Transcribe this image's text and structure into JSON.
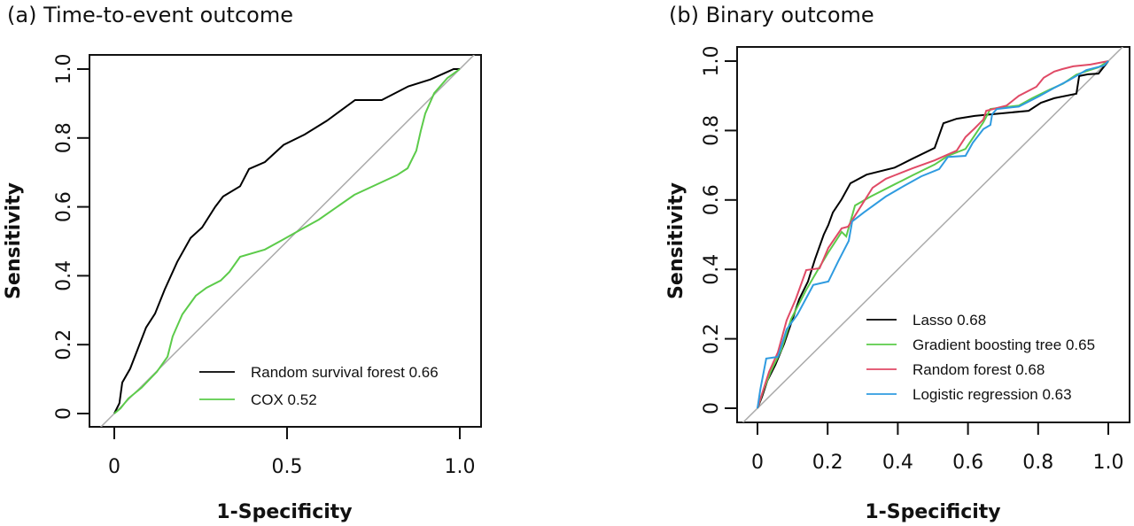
{
  "chart_data": [
    {
      "type": "line",
      "title": "(a) Time-to-event outcome",
      "xlabel": "1-Specificity",
      "ylabel": "Sensitivity",
      "xlim": [
        0,
        1
      ],
      "ylim": [
        0,
        1
      ],
      "xticks": [
        0,
        0.5,
        1.0
      ],
      "xtick_labels": [
        "0",
        "0.5",
        "1.0"
      ],
      "yticks": [
        0,
        0.2,
        0.4,
        0.6,
        0.8,
        1.0
      ],
      "ytick_labels": [
        "0",
        "0.2",
        "0.4",
        "0.6",
        "0.8",
        "1.0"
      ],
      "grid": false,
      "legend_position": "bottom-right",
      "reference_line": {
        "name": "chance",
        "color": "#aaaaaa",
        "points": [
          [
            -0.07,
            -0.07
          ],
          [
            1.06,
            1.06
          ]
        ]
      },
      "series": [
        {
          "name": "Random survival forest 0.66",
          "auc": 0.66,
          "color": "#000000",
          "x": [
            0,
            0.015,
            0.023,
            0.046,
            0.069,
            0.092,
            0.118,
            0.146,
            0.182,
            0.221,
            0.254,
            0.292,
            0.315,
            0.364,
            0.39,
            0.436,
            0.49,
            0.551,
            0.615,
            0.697,
            0.774,
            0.851,
            0.915,
            0.982,
            1
          ],
          "y": [
            0,
            0.03,
            0.09,
            0.13,
            0.19,
            0.25,
            0.29,
            0.36,
            0.44,
            0.51,
            0.54,
            0.6,
            0.63,
            0.66,
            0.71,
            0.73,
            0.78,
            0.81,
            0.85,
            0.91,
            0.91,
            0.95,
            0.97,
            1.0,
            1.0
          ]
        },
        {
          "name": "COX 0.52",
          "auc": 0.52,
          "color": "#5ccb4a",
          "x": [
            0,
            0.018,
            0.041,
            0.079,
            0.123,
            0.154,
            0.169,
            0.197,
            0.236,
            0.267,
            0.308,
            0.333,
            0.364,
            0.436,
            0.487,
            0.536,
            0.592,
            0.695,
            0.818,
            0.849,
            0.874,
            0.887,
            0.9,
            0.926,
            0.964,
            1
          ],
          "y": [
            0,
            0.015,
            0.044,
            0.075,
            0.121,
            0.165,
            0.224,
            0.288,
            0.342,
            0.365,
            0.386,
            0.411,
            0.455,
            0.476,
            0.504,
            0.532,
            0.563,
            0.635,
            0.692,
            0.712,
            0.763,
            0.82,
            0.871,
            0.93,
            0.974,
            1
          ]
        }
      ]
    },
    {
      "type": "line",
      "title": "(b) Binary outcome",
      "xlabel": "1-Specificity",
      "ylabel": "Sensitivity",
      "xlim": [
        0,
        1
      ],
      "ylim": [
        0,
        1
      ],
      "xticks": [
        0,
        0.2,
        0.4,
        0.6,
        0.8,
        1.0
      ],
      "xtick_labels": [
        "0",
        "0.2",
        "0.4",
        "0.6",
        "0.8",
        "1.0"
      ],
      "yticks": [
        0,
        0.2,
        0.4,
        0.6,
        0.8,
        1.0
      ],
      "ytick_labels": [
        "0",
        "0.2",
        "0.4",
        "0.6",
        "0.8",
        "1.0"
      ],
      "grid": false,
      "legend_position": "bottom-right",
      "reference_line": {
        "name": "chance",
        "color": "#aaaaaa",
        "points": [
          [
            -0.07,
            -0.07
          ],
          [
            1.06,
            1.06
          ]
        ]
      },
      "series": [
        {
          "name": "Lasso 0.68",
          "auc": 0.68,
          "color": "#000000",
          "x": [
            0,
            0.013,
            0.028,
            0.051,
            0.076,
            0.096,
            0.119,
            0.144,
            0.164,
            0.189,
            0.202,
            0.215,
            0.24,
            0.265,
            0.311,
            0.391,
            0.442,
            0.505,
            0.53,
            0.568,
            0.619,
            0.669,
            0.773,
            0.808,
            0.846,
            0.909,
            0.917,
            0.942,
            0.972,
            1
          ],
          "y": [
            0,
            0.033,
            0.079,
            0.125,
            0.186,
            0.245,
            0.314,
            0.365,
            0.429,
            0.5,
            0.528,
            0.564,
            0.602,
            0.648,
            0.673,
            0.693,
            0.719,
            0.75,
            0.821,
            0.834,
            0.842,
            0.847,
            0.857,
            0.88,
            0.893,
            0.906,
            0.957,
            0.962,
            0.964,
            1
          ]
        },
        {
          "name": "Gradient boosting tree 0.65",
          "auc": 0.65,
          "color": "#5ccb4a",
          "x": [
            0,
            0.018,
            0.038,
            0.068,
            0.096,
            0.139,
            0.169,
            0.202,
            0.24,
            0.253,
            0.278,
            0.323,
            0.391,
            0.442,
            0.505,
            0.543,
            0.593,
            0.619,
            0.644,
            0.664,
            0.745,
            0.783,
            0.833,
            0.871,
            0.909,
            0.947,
            0.972,
            1
          ],
          "y": [
            0,
            0.054,
            0.105,
            0.168,
            0.257,
            0.341,
            0.393,
            0.449,
            0.508,
            0.495,
            0.584,
            0.61,
            0.645,
            0.671,
            0.702,
            0.727,
            0.747,
            0.786,
            0.824,
            0.862,
            0.872,
            0.893,
            0.918,
            0.935,
            0.961,
            0.974,
            0.982,
            1
          ]
        },
        {
          "name": "Random forest 0.68",
          "auc": 0.68,
          "color": "#e04a66",
          "x": [
            0,
            0.013,
            0.033,
            0.058,
            0.083,
            0.109,
            0.139,
            0.177,
            0.202,
            0.24,
            0.258,
            0.328,
            0.366,
            0.391,
            0.442,
            0.505,
            0.568,
            0.593,
            0.619,
            0.644,
            0.652,
            0.71,
            0.745,
            0.795,
            0.816,
            0.846,
            0.869,
            0.9,
            0.949,
            1
          ],
          "y": [
            0,
            0.041,
            0.105,
            0.161,
            0.253,
            0.314,
            0.398,
            0.403,
            0.462,
            0.518,
            0.523,
            0.635,
            0.661,
            0.671,
            0.691,
            0.714,
            0.742,
            0.781,
            0.806,
            0.832,
            0.857,
            0.872,
            0.9,
            0.926,
            0.952,
            0.97,
            0.977,
            0.985,
            0.99,
            1
          ]
        },
        {
          "name": "Logistic regression 0.63",
          "auc": 0.63,
          "color": "#2f9be0",
          "x": [
            0,
            0.008,
            0.025,
            0.058,
            0.083,
            0.114,
            0.159,
            0.202,
            0.23,
            0.26,
            0.27,
            0.303,
            0.366,
            0.417,
            0.467,
            0.518,
            0.543,
            0.593,
            0.614,
            0.644,
            0.664,
            0.669,
            0.682,
            0.745,
            0.803,
            0.848,
            0.886,
            0.937,
            0.987,
            1
          ],
          "y": [
            0,
            0.054,
            0.143,
            0.148,
            0.227,
            0.27,
            0.355,
            0.365,
            0.423,
            0.482,
            0.538,
            0.564,
            0.61,
            0.64,
            0.668,
            0.689,
            0.724,
            0.727,
            0.765,
            0.804,
            0.816,
            0.847,
            0.862,
            0.869,
            0.899,
            0.924,
            0.944,
            0.974,
            0.987,
            1
          ]
        }
      ]
    }
  ]
}
